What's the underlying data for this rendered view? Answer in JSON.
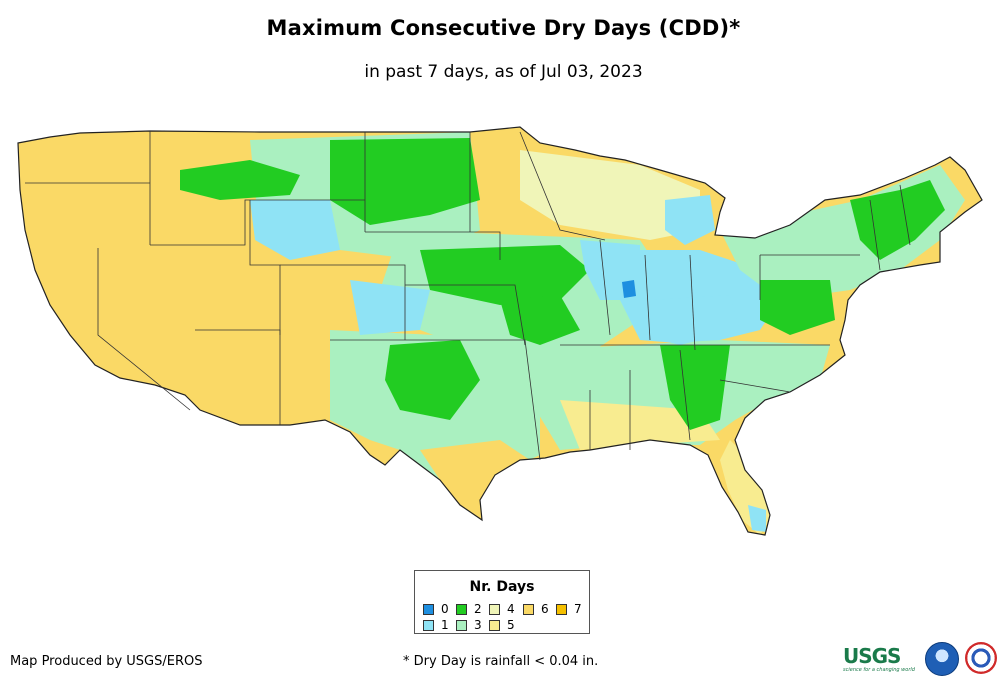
{
  "title": "Maximum Consecutive Dry Days (CDD)*",
  "subtitle": "in past 7 days, as of Jul 03, 2023",
  "legend": {
    "title": "Nr. Days",
    "items": [
      {
        "label": "0",
        "color": "#1e8fe0"
      },
      {
        "label": "1",
        "color": "#8fe3f5"
      },
      {
        "label": "2",
        "color": "#22cc22"
      },
      {
        "label": "3",
        "color": "#aaf0c0"
      },
      {
        "label": "4",
        "color": "#f0f5b8"
      },
      {
        "label": "5",
        "color": "#f8ec90"
      },
      {
        "label": "6",
        "color": "#fad966"
      },
      {
        "label": "7",
        "color": "#f5c000"
      }
    ]
  },
  "footer": {
    "credit": "Map Produced by USGS/EROS",
    "footnote": "* Dry Day is rainfall < 0.04 in."
  },
  "logos": {
    "usgs": "USGS",
    "usgs_tagline": "science for a changing world"
  },
  "map_colors": {
    "outline": "#222222",
    "state_border": "#333333"
  }
}
